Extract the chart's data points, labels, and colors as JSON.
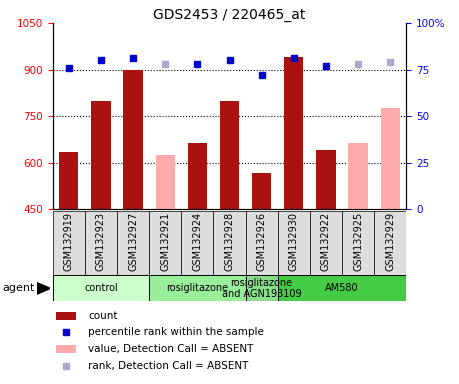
{
  "title": "GDS2453 / 220465_at",
  "samples": [
    "GSM132919",
    "GSM132923",
    "GSM132927",
    "GSM132921",
    "GSM132924",
    "GSM132928",
    "GSM132926",
    "GSM132930",
    "GSM132922",
    "GSM132925",
    "GSM132929"
  ],
  "counts": [
    635,
    800,
    900,
    null,
    665,
    800,
    568,
    940,
    640,
    null,
    null
  ],
  "absent_values": [
    null,
    null,
    null,
    625,
    null,
    null,
    null,
    null,
    null,
    665,
    775
  ],
  "percentile_ranks": [
    76,
    80,
    81,
    null,
    78,
    80,
    72,
    81,
    77,
    null,
    null
  ],
  "absent_ranks": [
    null,
    null,
    null,
    78,
    null,
    null,
    null,
    null,
    null,
    78,
    79
  ],
  "ylim_left": [
    450,
    1050
  ],
  "ylim_right": [
    0,
    100
  ],
  "yticks_left": [
    450,
    600,
    750,
    900,
    1050
  ],
  "yticks_right": [
    0,
    25,
    50,
    75,
    100
  ],
  "bar_color_present": "#aa1111",
  "bar_color_absent": "#ffaaaa",
  "dot_color_present": "#0000cc",
  "dot_color_absent": "#aaaacc",
  "groups": [
    {
      "label": "control",
      "start": 0,
      "end": 3,
      "color": "#ccffcc"
    },
    {
      "label": "rosiglitazone",
      "start": 3,
      "end": 6,
      "color": "#99ee99"
    },
    {
      "label": "rosiglitazone\nand AGN193109",
      "start": 6,
      "end": 7,
      "color": "#88dd88"
    },
    {
      "label": "AM580",
      "start": 7,
      "end": 11,
      "color": "#44cc44"
    }
  ],
  "title_fontsize": 10,
  "label_fontsize": 7,
  "tick_fontsize": 7.5,
  "group_fontsize": 7,
  "legend_fontsize": 7.5
}
